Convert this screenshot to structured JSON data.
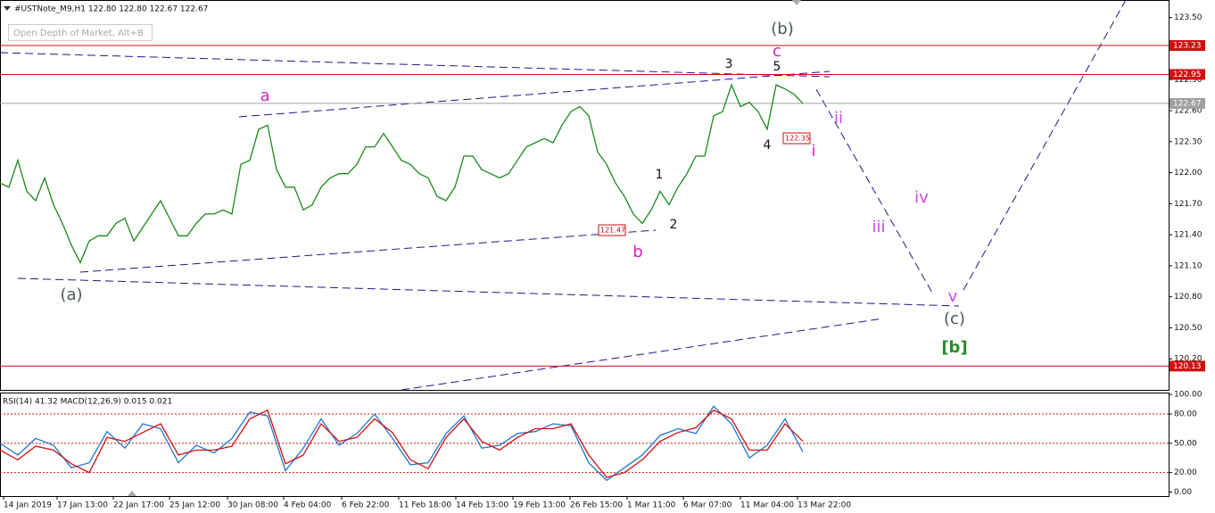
{
  "title": "#USTNote_M9,H1  122.80 122.80 122.67 122.67",
  "tooltip": "Open Depth of Market, Alt+B",
  "chart_data": [
    {
      "type": "line",
      "color": "#1a8a1a",
      "values": [
        121.9,
        121.86,
        122.12,
        121.82,
        121.73,
        121.95,
        121.69,
        121.51,
        121.3,
        121.13,
        121.34,
        121.39,
        121.39,
        121.51,
        121.56,
        121.34,
        121.47,
        121.6,
        121.73,
        121.56,
        121.39,
        121.39,
        121.51,
        121.6,
        121.6,
        121.64,
        121.6,
        122.08,
        122.12,
        122.42,
        122.46,
        122.03,
        121.86,
        121.86,
        121.64,
        121.69,
        121.86,
        121.95,
        121.99,
        121.99,
        122.08,
        122.25,
        122.25,
        122.38,
        122.25,
        122.12,
        122.08,
        121.99,
        121.95,
        121.77,
        121.73,
        121.86,
        122.16,
        122.16,
        122.03,
        121.99,
        121.95,
        121.99,
        122.12,
        122.25,
        122.29,
        122.33,
        122.29,
        122.46,
        122.59,
        122.64,
        122.55,
        122.2,
        122.08,
        121.9,
        121.77,
        121.6,
        121.51,
        121.64,
        121.82,
        121.69,
        121.86,
        121.99,
        122.16,
        122.16,
        122.55,
        122.59,
        122.85,
        122.64,
        122.68,
        122.59,
        122.42,
        122.85,
        122.81,
        122.76,
        122.67
      ],
      "xlim": [
        0,
        131
      ],
      "xticks": [
        {
          "value": 0.4,
          "label": "14 Jan 2019"
        },
        {
          "value": 6.4,
          "label": "17 Jan 13:00"
        },
        {
          "value": 12.7,
          "label": "22 Jan 17:00"
        },
        {
          "value": 19,
          "label": "25 Jan 12:00"
        },
        {
          "value": 25.5,
          "label": "30 Jan 08:00"
        },
        {
          "value": 31.8,
          "label": "4 Feb 04:00"
        },
        {
          "value": 38.3,
          "label": "6 Feb 22:00"
        },
        {
          "value": 44.7,
          "label": "11 Feb 18:00"
        },
        {
          "value": 51.1,
          "label": "14 Feb 13:00"
        },
        {
          "value": 57.5,
          "label": "19 Feb 13:00"
        },
        {
          "value": 63.9,
          "label": "26 Feb 15:00"
        },
        {
          "value": 70.3,
          "label": "1 Mar 11:00"
        },
        {
          "value": 76.6,
          "label": "6 Mar 07:00"
        },
        {
          "value": 83,
          "label": "11 Mar 04:00"
        },
        {
          "value": 89.4,
          "label": "13 Mar 22:00"
        }
      ],
      "ylim": [
        119.9,
        123.67
      ],
      "yticks": [
        {
          "value": 123.5,
          "label": "123.50"
        },
        {
          "value": 123.2,
          "label": "123.20"
        },
        {
          "value": 122.9,
          "label": "122.90"
        },
        {
          "value": 122.6,
          "label": "122.60"
        },
        {
          "value": 122.3,
          "label": "122.30"
        },
        {
          "value": 122.0,
          "label": "122.00"
        },
        {
          "value": 121.7,
          "label": "121.70"
        },
        {
          "value": 121.4,
          "label": "121.40"
        },
        {
          "value": 121.1,
          "label": "121.10"
        },
        {
          "value": 120.8,
          "label": "120.80"
        },
        {
          "value": 120.5,
          "label": "120.50"
        },
        {
          "value": 120.2,
          "label": "120.20"
        }
      ],
      "levels": [
        {
          "value": 123.23,
          "color": "#d01010"
        },
        {
          "value": 122.95,
          "color": "#d01010"
        },
        {
          "value": 122.67,
          "color": "#a0a0a0"
        },
        {
          "value": 120.13,
          "color": "#d01010"
        }
      ],
      "price_labels": [
        122.35,
        121.47
      ],
      "annotations": [
        {
          "text": "(b)",
          "color": "#4a5a5a"
        },
        {
          "text": "c",
          "color": "#e020c0"
        },
        {
          "text": "3",
          "color": "#111111"
        },
        {
          "text": "5",
          "color": "#111111"
        },
        {
          "text": "a",
          "color": "#e020c0"
        },
        {
          "text": "ii",
          "color": "#cc44ee"
        },
        {
          "text": "4",
          "color": "#111111"
        },
        {
          "text": "i",
          "color": "#e020c0"
        },
        {
          "text": "1",
          "color": "#111111"
        },
        {
          "text": "iv",
          "color": "#cc44ee"
        },
        {
          "text": "2",
          "color": "#111111"
        },
        {
          "text": "iii",
          "color": "#cc44ee"
        },
        {
          "text": "b",
          "color": "#e020c0"
        },
        {
          "text": "(a)",
          "color": "#4a5a5a"
        },
        {
          "text": "v",
          "color": "#cc44ee"
        },
        {
          "text": "(c)",
          "color": "#4a5a5a"
        },
        {
          "text": "[b]",
          "color": "#2a8a2a"
        }
      ]
    },
    {
      "type": "line",
      "title": "RSI(14) 41.32 MACD(12,26,9) 0.015 0.021",
      "xlim": [
        0,
        65.5
      ],
      "ylim": [
        -5,
        102
      ],
      "yticks": [
        {
          "value": 100,
          "label": "100.00"
        },
        {
          "value": 80,
          "label": "80.00"
        },
        {
          "value": 50,
          "label": "50.00"
        },
        {
          "value": 20,
          "label": "20.00"
        },
        {
          "value": 0,
          "label": "0.00"
        }
      ],
      "levels": [
        80,
        50,
        20
      ],
      "series": [
        {
          "name": "RSI(14)",
          "color": "#1f77d0",
          "values": [
            50,
            38,
            55,
            48,
            25,
            30,
            62,
            45,
            70,
            65,
            30,
            48,
            40,
            55,
            82,
            78,
            22,
            45,
            75,
            48,
            60,
            80,
            55,
            28,
            30,
            60,
            78,
            45,
            48,
            60,
            62,
            70,
            68,
            30,
            12,
            25,
            38,
            58,
            65,
            60,
            88,
            70,
            35,
            48,
            75,
            41.32
          ]
        },
        {
          "name": "MACD(12,26,9)",
          "color": "#d01010",
          "values": [
            43,
            33,
            47,
            43,
            29,
            20,
            56,
            52,
            61,
            70,
            38,
            43,
            43,
            47,
            75,
            84,
            29,
            38,
            70,
            52,
            56,
            75,
            61,
            33,
            24,
            56,
            75,
            52,
            43,
            56,
            65,
            65,
            70,
            38,
            15,
            20,
            33,
            52,
            61,
            66,
            84,
            75,
            43,
            43,
            70,
            52
          ]
        }
      ]
    }
  ]
}
